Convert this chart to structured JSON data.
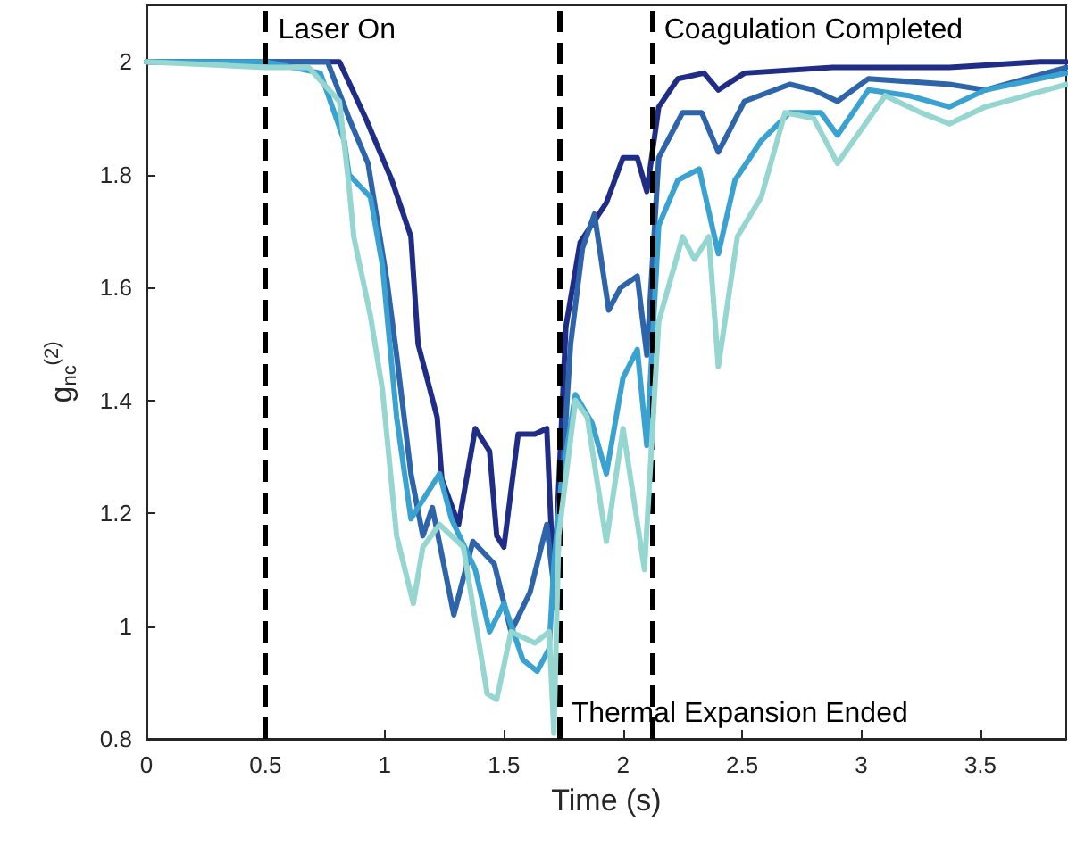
{
  "chart_data": {
    "type": "line",
    "xlabel": "Time (s)",
    "ylabel": "g$_{nc}$$^{(2)}$",
    "xlim": [
      0,
      3.86
    ],
    "ylim": [
      0.8,
      2.1
    ],
    "xticks": [
      0,
      0.5,
      1,
      1.5,
      2,
      2.5,
      3,
      3.5
    ],
    "yticks": [
      0.8,
      1,
      1.2,
      1.4,
      1.6,
      1.8,
      2
    ],
    "grid": false,
    "marker": "none",
    "line_style": "solid",
    "ref_lines": [
      {
        "axis": "x",
        "value": 0.5,
        "label": "Laser On",
        "line_style": "dashed",
        "color": "#000000"
      },
      {
        "axis": "x",
        "value": 1.73,
        "label": "Thermal Expansion Ended",
        "line_style": "dashed",
        "color": "#000000"
      },
      {
        "axis": "x",
        "value": 2.12,
        "label": "Coagulation Completed",
        "line_style": "dashed",
        "color": "#000000"
      }
    ],
    "series": [
      {
        "color": "#1f2d86",
        "x": [
          0,
          0.5,
          0.81,
          0.92,
          1.03,
          1.11,
          1.14,
          1.22,
          1.24,
          1.31,
          1.38,
          1.44,
          1.47,
          1.5,
          1.56,
          1.63,
          1.68,
          1.71,
          1.76,
          1.82,
          1.93,
          2.0,
          2.06,
          2.1,
          2.15,
          2.23,
          2.34,
          2.4,
          2.51,
          2.88,
          3.37,
          3.75,
          3.86
        ],
        "values": [
          2.0,
          2.0,
          2.0,
          1.9,
          1.79,
          1.69,
          1.5,
          1.37,
          1.26,
          1.18,
          1.35,
          1.31,
          1.16,
          1.14,
          1.34,
          1.34,
          1.35,
          1.06,
          1.53,
          1.68,
          1.75,
          1.83,
          1.83,
          1.77,
          1.92,
          1.97,
          1.98,
          1.95,
          1.98,
          1.99,
          1.99,
          2.0,
          2.0
        ]
      },
      {
        "color": "#2e64a9",
        "x": [
          0,
          0.5,
          0.76,
          0.85,
          0.93,
          1.01,
          1.05,
          1.11,
          1.16,
          1.2,
          1.29,
          1.37,
          1.46,
          1.53,
          1.61,
          1.68,
          1.72,
          1.73,
          1.78,
          1.83,
          1.88,
          1.94,
          1.99,
          2.06,
          2.1,
          2.15,
          2.25,
          2.33,
          2.4,
          2.51,
          2.7,
          2.8,
          2.9,
          3.03,
          3.37,
          3.52,
          3.86
        ],
        "values": [
          2.0,
          2.0,
          2.0,
          1.9,
          1.82,
          1.61,
          1.48,
          1.27,
          1.16,
          1.21,
          1.02,
          1.15,
          1.11,
          0.99,
          1.06,
          1.18,
          1.03,
          1.16,
          1.5,
          1.67,
          1.73,
          1.56,
          1.6,
          1.62,
          1.48,
          1.83,
          1.91,
          1.91,
          1.84,
          1.93,
          1.96,
          1.95,
          1.93,
          1.97,
          1.96,
          1.95,
          1.99
        ]
      },
      {
        "color": "#3aa2d1",
        "x": [
          0,
          0.5,
          0.73,
          0.83,
          0.85,
          0.94,
          0.99,
          1.05,
          1.11,
          1.14,
          1.23,
          1.28,
          1.38,
          1.44,
          1.5,
          1.58,
          1.64,
          1.69,
          1.71,
          1.74,
          1.8,
          1.87,
          1.93,
          2.0,
          2.06,
          2.1,
          2.15,
          2.23,
          2.32,
          2.4,
          2.47,
          2.58,
          2.7,
          2.83,
          2.9,
          3.03,
          3.2,
          3.37,
          3.52,
          3.86
        ],
        "values": [
          2.0,
          2.0,
          1.98,
          1.86,
          1.8,
          1.76,
          1.64,
          1.37,
          1.19,
          1.21,
          1.27,
          1.19,
          1.1,
          0.99,
          1.04,
          0.94,
          0.92,
          0.96,
          1.11,
          1.25,
          1.41,
          1.36,
          1.27,
          1.44,
          1.49,
          1.32,
          1.71,
          1.79,
          1.81,
          1.66,
          1.79,
          1.86,
          1.91,
          1.91,
          1.87,
          1.95,
          1.94,
          1.92,
          1.95,
          1.98
        ]
      },
      {
        "color": "#96d6d0",
        "x": [
          0,
          0.5,
          0.68,
          0.81,
          0.85,
          0.87,
          0.94,
          0.99,
          1.05,
          1.12,
          1.16,
          1.23,
          1.33,
          1.43,
          1.47,
          1.53,
          1.63,
          1.69,
          1.71,
          1.73,
          1.8,
          1.85,
          1.93,
          2.0,
          2.09,
          2.15,
          2.25,
          2.3,
          2.36,
          2.4,
          2.48,
          2.58,
          2.68,
          2.8,
          2.9,
          3.1,
          3.25,
          3.37,
          3.52,
          3.86
        ],
        "values": [
          2.0,
          1.99,
          1.99,
          1.93,
          1.78,
          1.69,
          1.55,
          1.42,
          1.16,
          1.04,
          1.14,
          1.18,
          1.14,
          0.88,
          0.87,
          0.99,
          0.97,
          0.99,
          0.81,
          1.16,
          1.4,
          1.37,
          1.15,
          1.35,
          1.1,
          1.54,
          1.69,
          1.65,
          1.69,
          1.46,
          1.69,
          1.76,
          1.91,
          1.9,
          1.82,
          1.94,
          1.91,
          1.89,
          1.92,
          1.96
        ]
      }
    ]
  }
}
